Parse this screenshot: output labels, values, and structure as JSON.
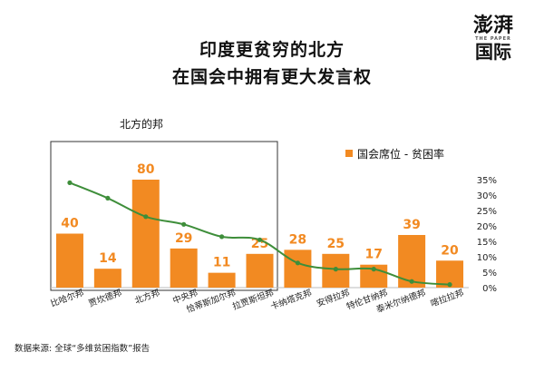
{
  "title_line1": "印度更贫穷的北方",
  "title_line2": "在国会中拥有更大发言权",
  "logo": {
    "line1": "澎湃",
    "sub": "THE PAPER",
    "line2": "国际"
  },
  "source": "数据来源: 全球“多维贫困指数”报告",
  "colors": {
    "bar": "#F28A22",
    "line": "#3E8E3A",
    "label": "#F28A22",
    "box": "#333333"
  },
  "chart_data": {
    "type": "bar",
    "categories": [
      "比哈尔邦",
      "贾坎德邦",
      "北方邦",
      "中央邦",
      "恰蒂斯加尔邦",
      "拉贾斯坦邦",
      "卡纳塔克邦",
      "安得拉邦",
      "特伦甘纳邦",
      "泰米尔纳德邦",
      "喀拉拉邦"
    ],
    "series": [
      {
        "name": "国会席位",
        "values": [
          40,
          14,
          80,
          29,
          11,
          25,
          28,
          25,
          17,
          39,
          20
        ]
      },
      {
        "name": "贫困率",
        "values": [
          34,
          29,
          23,
          20.5,
          16.5,
          15.5,
          8,
          6,
          6,
          2,
          1
        ]
      }
    ],
    "legend_text": "国会席位 - 贫困率",
    "group_label": "北方的邦",
    "y2_ticks": [
      "35%",
      "30%",
      "25%",
      "20%",
      "15%",
      "10%",
      "5%",
      "0%"
    ],
    "y2lim": [
      0,
      35
    ],
    "ylim": [
      0,
      80
    ],
    "legend_position": "top-right",
    "grid": false
  }
}
